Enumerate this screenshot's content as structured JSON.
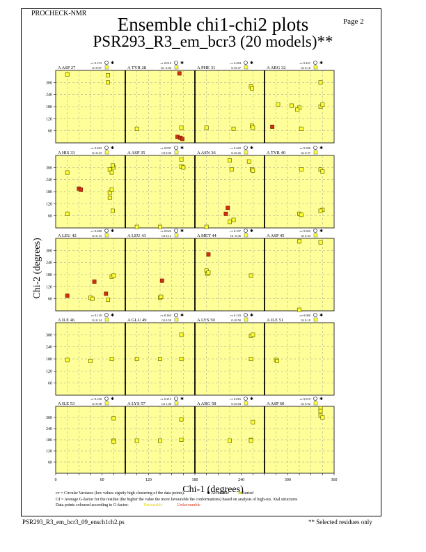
{
  "header": {
    "program": "PROCHECK-NMR",
    "page": "Page  2"
  },
  "title": "Ensemble chi1-chi2 plots",
  "subtitle": "PSR293_R3_em_bcr3 (20 models)**",
  "chart_data": {
    "type": "scatter",
    "xlabel": "Chi-1 (degrees)",
    "ylabel": "Chi-2 (degrees)",
    "xlim": [
      0,
      360
    ],
    "ylim": [
      0,
      360
    ],
    "xticks": [
      0,
      60,
      120,
      180,
      240,
      300,
      360
    ],
    "yticks": [
      60,
      120,
      180,
      240,
      300
    ],
    "grid": true,
    "colors": {
      "panel": "#ffff99",
      "favourable": "#ffff33",
      "unfavourable": "#d03010",
      "outline": "#666600"
    },
    "panels": [
      {
        "label": "A ASP 27",
        "cv": "cv 0.153",
        "gf": "Gf 0.87",
        "points": [
          [
            60,
            340
          ],
          [
            270,
            300
          ],
          [
            270,
            336
          ]
        ],
        "red": []
      },
      {
        "label": "A TYR 28",
        "cv": "cv 0.010",
        "gf": "Gf -2.04",
        "points": [
          [
            60,
            70
          ],
          [
            290,
            75
          ]
        ],
        "red": [
          [
            280,
            345
          ],
          [
            270,
            30
          ],
          [
            285,
            25
          ],
          [
            295,
            20
          ]
        ]
      },
      {
        "label": "A PHE 31",
        "cv": "cv 0.284",
        "gf": "Gf 0.47",
        "points": [
          [
            60,
            75
          ],
          [
            290,
            280
          ],
          [
            295,
            270
          ],
          [
            295,
            85
          ],
          [
            300,
            75
          ],
          [
            200,
            70
          ]
        ],
        "red": []
      },
      {
        "label": "A ARG 32",
        "cv": "cv 0.421",
        "gf": "Gf 0.10",
        "points": [
          [
            290,
            300
          ],
          [
            70,
            190
          ],
          [
            140,
            185
          ],
          [
            180,
            175
          ],
          [
            170,
            165
          ],
          [
            290,
            180
          ],
          [
            300,
            190
          ],
          [
            190,
            70
          ]
        ],
        "red": [
          [
            40,
            80
          ]
        ]
      },
      {
        "label": "A HIS 33",
        "cv": "cv 0.483",
        "gf": "Gf 0.23",
        "points": [
          [
            60,
            275
          ],
          [
            60,
            70
          ],
          [
            280,
            290
          ],
          [
            300,
            300
          ],
          [
            290,
            275
          ],
          [
            295,
            310
          ],
          [
            280,
            175
          ],
          [
            290,
            190
          ],
          [
            280,
            150
          ],
          [
            295,
            85
          ]
        ],
        "red": [
          [
            120,
            195
          ],
          [
            130,
            190
          ]
        ]
      },
      {
        "label": "A ASP 35",
        "cv": "cv 0.097",
        "gf": "Gf 0.06",
        "points": [
          [
            60,
            5
          ],
          [
            180,
            5
          ],
          [
            290,
            340
          ],
          [
            290,
            305
          ],
          [
            300,
            300
          ]
        ],
        "red": []
      },
      {
        "label": "A ASN 36",
        "cv": "cv 0.429",
        "gf": "Gf 0.26",
        "points": [
          [
            180,
            335
          ],
          [
            280,
            330
          ],
          [
            190,
            290
          ],
          [
            295,
            290
          ],
          [
            300,
            285
          ],
          [
            180,
            30
          ],
          [
            200,
            40
          ],
          [
            60,
            5
          ]
        ],
        "red": [
          [
            170,
            100
          ],
          [
            160,
            70
          ]
        ]
      },
      {
        "label": "A TYR 40",
        "cv": "cv 0.506",
        "gf": "Gf 0.37",
        "points": [
          [
            190,
            290
          ],
          [
            290,
            290
          ],
          [
            300,
            280
          ],
          [
            180,
            70
          ],
          [
            190,
            65
          ],
          [
            300,
            90
          ],
          [
            290,
            85
          ]
        ],
        "red": []
      },
      {
        "label": "A LEU 42",
        "cv": "cv 0.480",
        "gf": "Gf 0.15",
        "points": [
          [
            180,
            65
          ],
          [
            190,
            60
          ],
          [
            290,
            170
          ],
          [
            300,
            175
          ],
          [
            270,
            55
          ]
        ],
        "red": [
          [
            60,
            75
          ],
          [
            200,
            145
          ],
          [
            260,
            85
          ]
        ]
      },
      {
        "label": "A LEU 43",
        "cv": "cv 0.022",
        "gf": "Gf 0.12",
        "points": [
          [
            180,
            65
          ],
          [
            185,
            70
          ]
        ],
        "red": [
          [
            190,
            150
          ]
        ]
      },
      {
        "label": "A MET 44",
        "cv": "cv 0.107",
        "gf": "Gf -0.36",
        "points": [
          [
            60,
            200
          ],
          [
            65,
            185
          ],
          [
            70,
            190
          ],
          [
            290,
            175
          ]
        ],
        "red": [
          [
            70,
            280
          ]
        ]
      },
      {
        "label": "A ASP 45",
        "cv": "cv 0.065",
        "gf": "Gf 0.43",
        "points": [
          [
            180,
            345
          ],
          [
            290,
            340
          ],
          [
            180,
            5
          ]
        ],
        "red": []
      },
      {
        "label": "A ILE 46",
        "cv": "cv 0.110",
        "gf": "Gf 0.14",
        "points": [
          [
            60,
            175
          ],
          [
            180,
            170
          ],
          [
            290,
            180
          ]
        ],
        "red": []
      },
      {
        "label": "A GLU 49",
        "cv": "cv 0.363",
        "gf": "Gf 0.59",
        "points": [
          [
            60,
            180
          ],
          [
            180,
            180
          ],
          [
            290,
            180
          ],
          [
            290,
            300
          ]
        ],
        "red": []
      },
      {
        "label": "A LYS 50",
        "cv": "cv 0.143",
        "gf": "Gf 0.50",
        "points": [
          [
            290,
            295
          ],
          [
            300,
            300
          ],
          [
            290,
            180
          ]
        ],
        "red": []
      },
      {
        "label": "A ILE 51",
        "cv": "cv 0.000",
        "gf": "Gf 0.10",
        "points": [
          [
            60,
            175
          ],
          [
            65,
            170
          ]
        ],
        "red": []
      },
      {
        "label": "A ILE 53",
        "cv": "cv 0.160",
        "gf": "Gf 0.58",
        "points": [
          [
            300,
            295
          ],
          [
            300,
            175
          ],
          [
            300,
            170
          ]
        ],
        "red": []
      },
      {
        "label": "A LYS 57",
        "cv": "cv 0.213",
        "gf": "Gf 1.06",
        "points": [
          [
            60,
            175
          ],
          [
            180,
            175
          ],
          [
            290,
            180
          ],
          [
            290,
            290
          ]
        ],
        "red": []
      },
      {
        "label": "A ARG 58",
        "cv": "cv 0.016",
        "gf": "Gf 0.84",
        "points": [
          [
            180,
            175
          ],
          [
            290,
            180
          ],
          [
            290,
            175
          ],
          [
            300,
            275
          ]
        ],
        "red": []
      },
      {
        "label": "A ASP 60",
        "cv": "cv 0.019",
        "gf": "Gf 0.92",
        "points": [
          [
            290,
            350
          ],
          [
            290,
            335
          ],
          [
            290,
            310
          ],
          [
            300,
            300
          ]
        ],
        "red": []
      }
    ]
  },
  "legend": {
    "line1": "cv = Circular Variance (low values signify high clustering of the data points).",
    "accessible": "Accessible",
    "buried": "Buried",
    "line2": "Gf = Average G-factor for the residue (the higher the value the more favourable the conformations) based on analysis of high-res. Xtal structures",
    "line3": "Data points coloured according to G-factor:",
    "favourable": "Favourable",
    "unfavourable": "Unfavourable"
  },
  "footer": {
    "file": "PSR293_R3_em_bcr3_09_ensch1ch2.ps",
    "note": "** Selected residues only"
  }
}
